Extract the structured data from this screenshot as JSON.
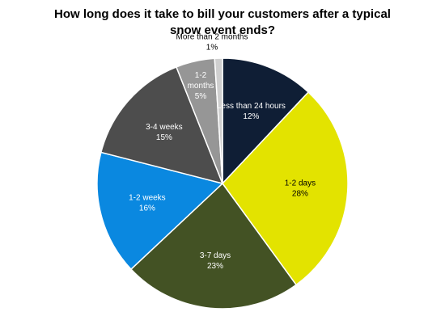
{
  "chart_data": {
    "type": "pie",
    "title": "How long does it take to bill your customers after a typical snow event ends?",
    "slices": [
      {
        "label": "Less than 24 hours",
        "value": 12,
        "value_label": "12%",
        "color": "#0f1e35",
        "text_color": "#ffffff"
      },
      {
        "label": "1-2 days",
        "value": 28,
        "value_label": "28%",
        "color": "#e3e300",
        "text_color": "#000000"
      },
      {
        "label": "3-7 days",
        "value": 23,
        "value_label": "23%",
        "color": "#435224",
        "text_color": "#ffffff"
      },
      {
        "label": "1-2 weeks",
        "value": 16,
        "value_label": "16%",
        "color": "#0a88e0",
        "text_color": "#ffffff"
      },
      {
        "label": "3-4 weeks",
        "value": 15,
        "value_label": "15%",
        "color": "#4d4d4d",
        "text_color": "#ffffff"
      },
      {
        "label": "1-2 months",
        "value": 5,
        "value_label": "5%",
        "color": "#969696",
        "text_color": "#ffffff"
      },
      {
        "label": "More than 2 months",
        "value": 1,
        "value_label": "1%",
        "color": "#cfcfcf",
        "text_color": "#000000"
      }
    ]
  }
}
